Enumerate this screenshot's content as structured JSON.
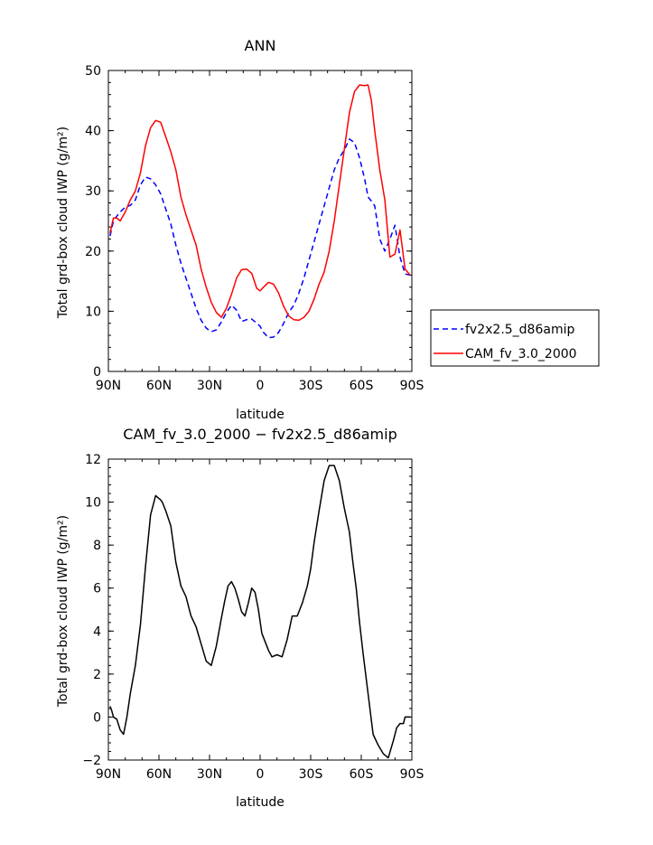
{
  "chart_data": [
    {
      "type": "line",
      "title": "ANN",
      "xlabel": "latitude",
      "ylabel": "Total grd-box cloud IWP (g/m²)",
      "xlim": [
        90,
        -90
      ],
      "ylim": [
        0,
        50
      ],
      "xticks": [
        90,
        60,
        30,
        0,
        -30,
        -60,
        -90
      ],
      "xtick_labels": [
        "90N",
        "60N",
        "30N",
        "0",
        "30S",
        "60S",
        "90S"
      ],
      "yticks": [
        0,
        10,
        20,
        30,
        40,
        50
      ],
      "ytick_labels": [
        "0",
        "10",
        "20",
        "30",
        "40",
        "50"
      ],
      "legend_position": "right",
      "x": [
        89,
        87,
        85,
        83,
        80,
        77,
        74,
        71,
        68,
        65,
        62,
        59,
        56,
        53,
        50,
        47,
        44,
        41,
        38,
        35,
        32,
        29,
        26,
        23,
        20,
        17,
        14,
        11,
        8,
        5,
        2,
        0,
        -2,
        -5,
        -8,
        -11,
        -14,
        -17,
        -20,
        -23,
        -26,
        -29,
        -32,
        -35,
        -38,
        -41,
        -44,
        -47,
        -50,
        -53,
        -56,
        -59,
        -62,
        -64,
        -66,
        -68,
        -71,
        -74,
        -77,
        -80,
        -83,
        -86,
        -89
      ],
      "series": [
        {
          "name": "fv2x2.5_d86amip",
          "color": "#0000ff",
          "dash": "dashed",
          "values": [
            22.5,
            25.0,
            25.8,
            26.5,
            27.3,
            27.6,
            28.5,
            31.0,
            32.3,
            32.0,
            31.0,
            29.5,
            27.0,
            24.5,
            21.0,
            18.0,
            15.5,
            13.0,
            10.5,
            8.5,
            7.2,
            6.6,
            6.9,
            8.2,
            9.8,
            11.0,
            10.2,
            8.3,
            8.6,
            8.7,
            8.0,
            7.5,
            6.5,
            5.6,
            5.7,
            6.5,
            8.0,
            9.8,
            11.0,
            13.0,
            15.5,
            18.5,
            21.5,
            24.5,
            27.5,
            30.5,
            33.5,
            35.5,
            36.8,
            38.6,
            38.0,
            35.5,
            32.0,
            29.0,
            28.3,
            27.5,
            22.0,
            20.0,
            22.0,
            24.3,
            19.0,
            16.2,
            16.0
          ]
        },
        {
          "name": "CAM_fv_3.0_2000",
          "color": "#ff0000",
          "dash": "solid",
          "values": [
            23.0,
            25.5,
            25.5,
            25.0,
            26.5,
            28.5,
            30.0,
            33.0,
            37.5,
            40.5,
            41.7,
            41.4,
            39.0,
            36.5,
            33.5,
            29.0,
            26.0,
            23.5,
            21.0,
            17.0,
            14.0,
            11.5,
            9.8,
            9.0,
            10.5,
            12.8,
            15.5,
            16.9,
            17.0,
            16.3,
            13.8,
            13.4,
            14.0,
            14.8,
            14.5,
            13.0,
            10.8,
            9.2,
            8.6,
            8.5,
            9.0,
            10.0,
            12.0,
            14.5,
            16.5,
            20.0,
            25.0,
            31.0,
            37.0,
            43.0,
            46.5,
            47.6,
            47.5,
            47.6,
            45.0,
            40.0,
            33.5,
            28.5,
            19.0,
            19.5,
            23.5,
            17.0,
            16.0
          ]
        }
      ]
    },
    {
      "type": "line",
      "title": "CAM_fv_3.0_2000 − fv2x2.5_d86amip",
      "xlabel": "latitude",
      "ylabel": "Total grd-box cloud IWP (g/m²)",
      "xlim": [
        90,
        -90
      ],
      "ylim": [
        -2,
        12
      ],
      "xticks": [
        90,
        60,
        30,
        0,
        -30,
        -60,
        -90
      ],
      "xtick_labels": [
        "90N",
        "60N",
        "30N",
        "0",
        "30S",
        "60S",
        "90S"
      ],
      "yticks": [
        -2,
        0,
        2,
        4,
        6,
        8,
        10,
        12
      ],
      "ytick_labels": [
        "−2",
        "0",
        "2",
        "4",
        "6",
        "8",
        "10",
        "12"
      ],
      "x": [
        89,
        88,
        87,
        85,
        83,
        81,
        79,
        77,
        74,
        71,
        68,
        65,
        62,
        59,
        58,
        56,
        53,
        50,
        47,
        44,
        41,
        38,
        35,
        32,
        29,
        26,
        23,
        21,
        19,
        17,
        15,
        13,
        11,
        9,
        7,
        5,
        3,
        1,
        -1,
        -3,
        -5,
        -7,
        -10,
        -13,
        -16,
        -19,
        -22,
        -25,
        -28,
        -30,
        -32,
        -35,
        -38,
        -41,
        -44,
        -47,
        -50,
        -53,
        -55,
        -57,
        -59,
        -61,
        -64,
        -67,
        -70,
        -73,
        -76,
        -79,
        -81,
        -83,
        -85,
        -86,
        -87,
        -88,
        -89
      ],
      "series": [
        {
          "name": "CAM_fv_3.0_2000 − fv2x2.5_d86amip",
          "color": "#000000",
          "dash": "solid",
          "values": [
            0.5,
            0.3,
            0.0,
            -0.1,
            -0.6,
            -0.8,
            0.0,
            1.1,
            2.4,
            4.3,
            7.0,
            9.4,
            10.3,
            10.1,
            10.0,
            9.6,
            8.9,
            7.2,
            6.1,
            5.6,
            4.7,
            4.2,
            3.4,
            2.6,
            2.4,
            3.3,
            4.6,
            5.4,
            6.1,
            6.3,
            6.0,
            5.5,
            4.9,
            4.7,
            5.3,
            6.0,
            5.8,
            5.0,
            3.9,
            3.5,
            3.1,
            2.8,
            2.9,
            2.8,
            3.6,
            4.7,
            4.7,
            5.3,
            6.1,
            6.9,
            8.1,
            9.6,
            11.0,
            11.7,
            11.7,
            11.0,
            9.7,
            8.6,
            7.2,
            6.0,
            4.4,
            3.0,
            1.1,
            -0.8,
            -1.3,
            -1.7,
            -1.9,
            -1.1,
            -0.5,
            -0.3,
            -0.3,
            0.0,
            0.0,
            0.0,
            0.0
          ]
        }
      ]
    }
  ]
}
